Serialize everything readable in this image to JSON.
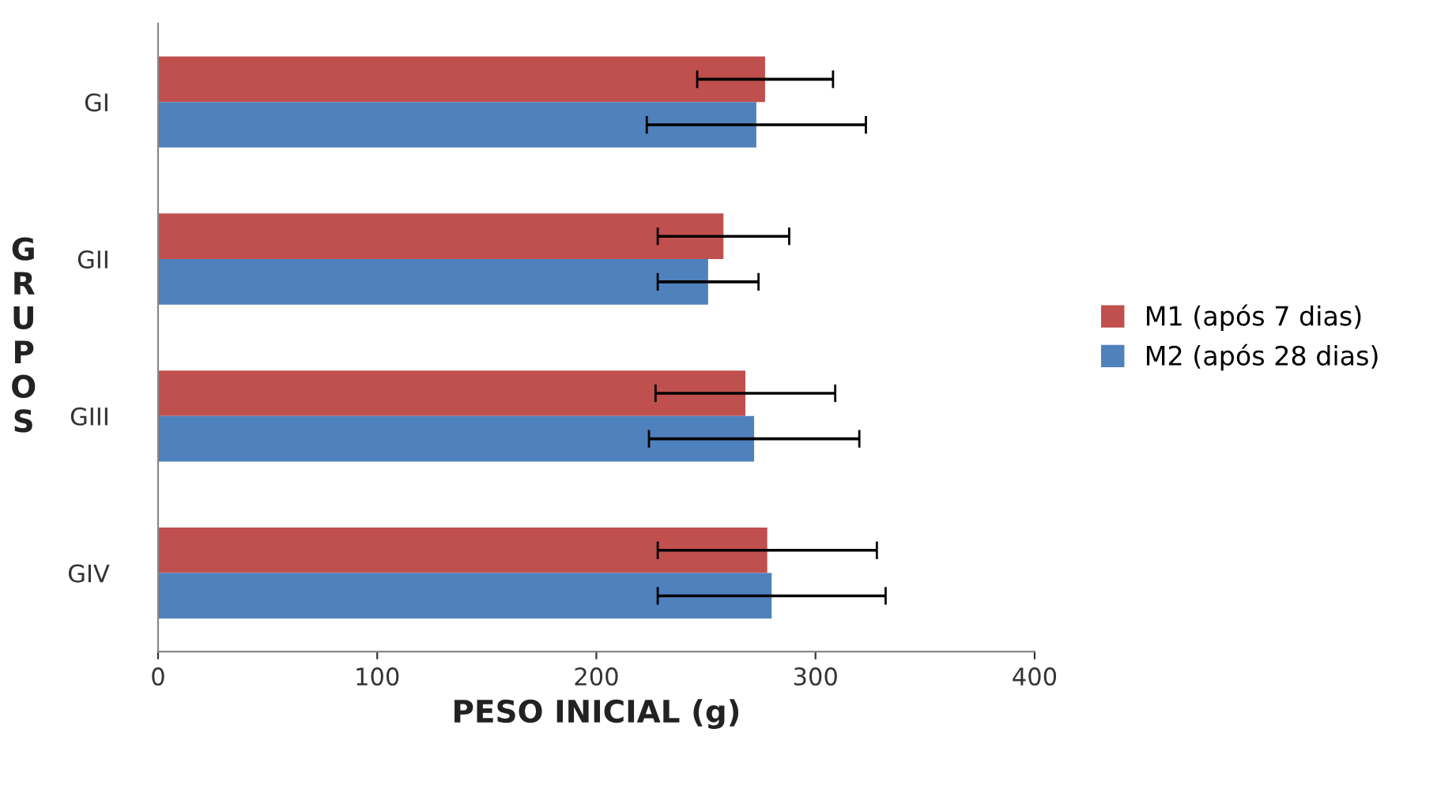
{
  "chart_data": {
    "type": "bar",
    "orientation": "horizontal",
    "categories": [
      "GI",
      "GII",
      "GIII",
      "GIV"
    ],
    "series": [
      {
        "name": "M1 (após 7 dias)",
        "color": "#c0504d",
        "values": [
          277,
          258,
          268,
          278
        ],
        "errors": [
          31,
          30,
          41,
          50
        ]
      },
      {
        "name": "M2 (após 28 dias)",
        "color": "#4f81bd",
        "values": [
          273,
          251,
          272,
          280
        ],
        "errors": [
          50,
          23,
          48,
          52
        ]
      }
    ],
    "xlabel": "PESO INICIAL (g)",
    "ylabel": "GRUPOS",
    "xlim": [
      0,
      400
    ],
    "xticks": [
      0,
      100,
      200,
      300,
      400
    ],
    "grid": false,
    "legend": "right"
  }
}
